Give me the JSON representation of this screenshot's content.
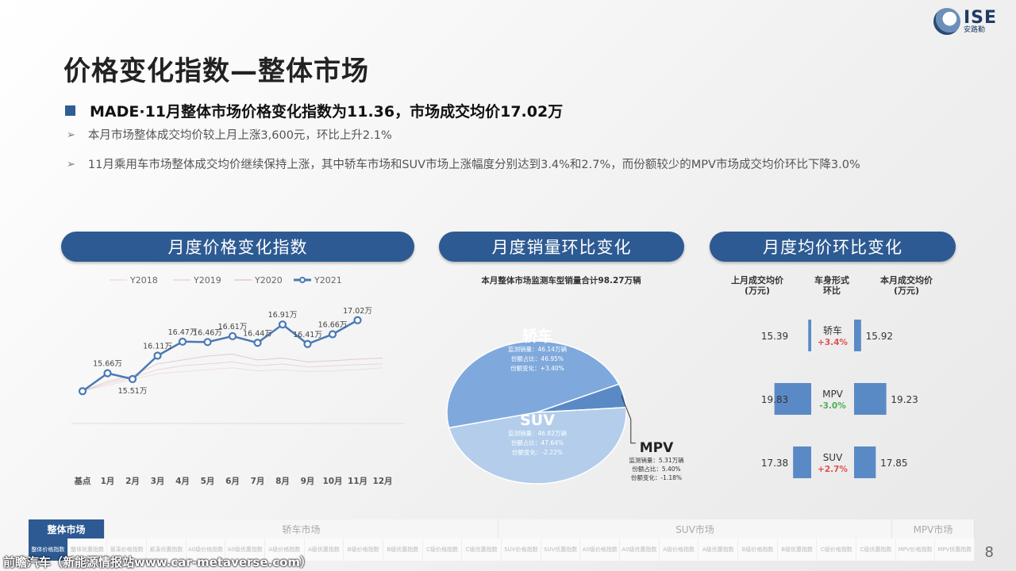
{
  "title": "价格变化指数—整体市场",
  "headline": "MADE·11月整体市场价格变化指数为11.36，市场成交均价17.02万",
  "bullets": [
    "本月市场整体成交均价较上月上涨3,600元，环比上升2.1%",
    "11月乘用车市场整体成交均价继续保持上涨，其中轿车市场和SUV市场上涨幅度分别达到3.4%和2.7%，而份额较少的MPV市场成交均价环比下降3.0%"
  ],
  "logo": {
    "brand": "ISE",
    "sub": "安路勤"
  },
  "panel_titles": [
    "月度价格变化指数",
    "月度销量环比变化",
    "月度均价环比变化"
  ],
  "chart_data": [
    {
      "type": "line",
      "categories": [
        "基点",
        "1月",
        "2月",
        "3月",
        "4月",
        "5月",
        "6月",
        "7月",
        "8月",
        "9月",
        "10月",
        "11月",
        "12月"
      ],
      "legend": [
        "Y2018",
        "Y2019",
        "Y2020",
        "Y2021"
      ],
      "series": [
        {
          "name": "Y2021",
          "values": [
            15.2,
            15.66,
            15.51,
            16.11,
            16.47,
            16.46,
            16.61,
            16.44,
            16.91,
            16.41,
            16.66,
            17.02,
            null
          ],
          "labels": [
            "",
            "15.66万",
            "15.51万",
            "16.11万",
            "16.47万",
            "16.46万",
            "16.61万",
            "16.44万",
            "16.91万",
            "16.41万",
            "16.66万",
            "17.02万",
            ""
          ]
        },
        {
          "name": "Y2020",
          "values": [
            15.2,
            15.45,
            15.6,
            15.9,
            16.0,
            16.1,
            16.15,
            16.0,
            16.05,
            15.95,
            15.98,
            16.02,
            16.05
          ]
        },
        {
          "name": "Y2019",
          "values": [
            15.2,
            15.4,
            15.55,
            15.75,
            15.85,
            15.9,
            15.95,
            15.85,
            15.9,
            15.82,
            15.85,
            15.88,
            15.9
          ]
        },
        {
          "name": "Y2018",
          "values": [
            15.2,
            15.35,
            15.5,
            15.65,
            15.7,
            15.75,
            15.8,
            15.72,
            15.75,
            15.7,
            15.72,
            15.75,
            15.8
          ]
        }
      ],
      "colors": {
        "Y2021": "#4a78b5",
        "Y2020": "#e8c9c9",
        "Y2019": "#e8d6d6",
        "Y2018": "#f0dede"
      }
    },
    {
      "type": "pie",
      "title": "本月整体市场监测车型销量合计98.27万辆",
      "slices": [
        {
          "name": "轿车",
          "value": 46.95,
          "lines": [
            "监测销量：46.14万辆",
            "份额占比：46.95%",
            "份额变化：+3.40%"
          ],
          "color": "#7fa9dc"
        },
        {
          "name": "SUV",
          "value": 47.64,
          "lines": [
            "监测销量：46.82万辆",
            "份额占比：47.64%",
            "份额变化：-2.22%"
          ],
          "color": "#b3cdeb"
        },
        {
          "name": "MPV",
          "value": 5.4,
          "lines": [
            "监测销量：5.31万辆",
            "份额占比：5.40%",
            "份额变化：-1.18%"
          ],
          "color": "#5a8ac6"
        }
      ]
    },
    {
      "type": "bar",
      "headers": [
        "上月成交均价\n(万元)",
        "车身形式\n环比",
        "本月成交均价\n(万元)"
      ],
      "rows": [
        {
          "name": "轿车",
          "prev": 15.39,
          "cur": 15.92,
          "change": "+3.4%",
          "dir": "up"
        },
        {
          "name": "MPV",
          "prev": 19.83,
          "cur": 19.23,
          "change": "-3.0%",
          "dir": "down"
        },
        {
          "name": "SUV",
          "prev": 17.38,
          "cur": 17.85,
          "change": "+2.7%",
          "dir": "up"
        }
      ],
      "colors": {
        "bar": "#5a8ac6",
        "up": "#e05050",
        "down": "#4caf50"
      }
    }
  ],
  "bottom_nav": {
    "sections": [
      {
        "label": "整体市场",
        "active": true
      },
      {
        "label": "轿车市场",
        "active": false
      },
      {
        "label": "SUV市场",
        "active": false
      },
      {
        "label": "MPV市场",
        "active": false
      }
    ],
    "items": [
      "整体价格指数",
      "整体优惠指数",
      "紧凑价格指数",
      "紧凑优惠指数",
      "A0级价格指数",
      "A0级优惠指数",
      "A级价格指数",
      "A级优惠指数",
      "B级价格指数",
      "B级优惠指数",
      "C级价格指数",
      "C级优惠指数",
      "SUV价格指数",
      "SUV优惠指数",
      "A0级价格指数",
      "A0级优惠指数",
      "A级价格指数",
      "A级优惠指数",
      "B级价格指数",
      "B级优惠指数",
      "C级价格指数",
      "C级优惠指数",
      "MPV价格指数",
      "MPV优惠指数"
    ]
  },
  "watermark": "前瞻汽车（新能源情报站www.car-metaverse.com）",
  "page_number": "8"
}
